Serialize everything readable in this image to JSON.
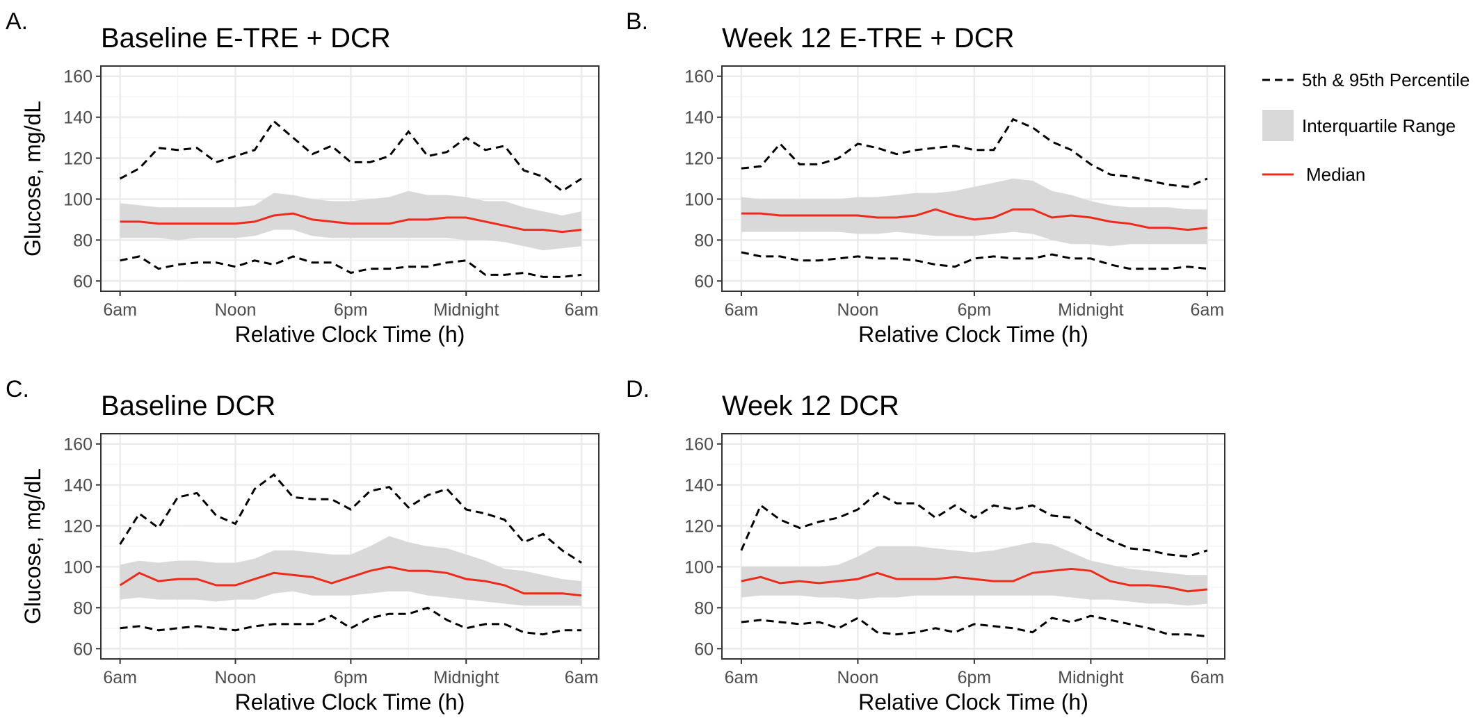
{
  "legend": {
    "percentile_label": "5th & 95th Percentile",
    "iqr_label": "Interquartile Range",
    "median_label": "Median"
  },
  "colors": {
    "median": "#ee2a1b",
    "iqr": "#d9d9d9",
    "percentile": "#000000",
    "grid_major": "#ebebeb",
    "grid_minor": "#f4f4f4",
    "panel_border": "#333333"
  },
  "chart_data": [
    {
      "type": "line",
      "letter": "A.",
      "title": "Baseline E-TRE + DCR",
      "xlabel": "Relative Clock Time (h)",
      "ylabel": "Glucose, mg/dL",
      "xlim": [
        0,
        24
      ],
      "ylim": [
        60,
        160
      ],
      "xticks": [
        0,
        6,
        12,
        18,
        24
      ],
      "xticklabels": [
        "6am",
        "Noon",
        "6pm",
        "Midnight",
        "6am"
      ],
      "yticks": [
        60,
        80,
        100,
        120,
        140,
        160
      ],
      "yticklabels": [
        "60",
        "80",
        "100",
        "120",
        "140",
        "160"
      ],
      "x": [
        0,
        1,
        2,
        3,
        4,
        5,
        6,
        7,
        8,
        9,
        10,
        11,
        12,
        13,
        14,
        15,
        16,
        17,
        18,
        19,
        20,
        21,
        22,
        23,
        24
      ],
      "series": [
        {
          "name": "95th Percentile",
          "values": [
            110,
            115,
            125,
            124,
            125,
            118,
            121,
            124,
            138,
            130,
            122,
            126,
            118,
            118,
            121,
            133,
            121,
            123,
            130,
            124,
            126,
            114,
            111,
            104,
            110
          ]
        },
        {
          "name": "75th Percentile",
          "values": [
            98,
            97,
            96,
            96,
            96,
            96,
            96,
            97,
            103,
            102,
            100,
            99,
            99,
            100,
            101,
            104,
            102,
            102,
            101,
            99,
            99,
            96,
            94,
            92,
            94
          ]
        },
        {
          "name": "Median",
          "values": [
            89,
            89,
            88,
            88,
            88,
            88,
            88,
            89,
            92,
            93,
            90,
            89,
            88,
            88,
            88,
            90,
            90,
            91,
            91,
            89,
            87,
            85,
            85,
            84,
            85
          ]
        },
        {
          "name": "25th Percentile",
          "values": [
            81,
            81,
            81,
            80,
            81,
            81,
            81,
            82,
            85,
            85,
            82,
            81,
            81,
            81,
            81,
            81,
            81,
            81,
            80,
            80,
            79,
            77,
            75,
            76,
            77
          ]
        },
        {
          "name": "5th Percentile",
          "values": [
            70,
            72,
            66,
            68,
            69,
            69,
            67,
            70,
            68,
            72,
            69,
            69,
            64,
            66,
            66,
            67,
            67,
            69,
            70,
            63,
            63,
            64,
            62,
            62,
            63
          ]
        }
      ]
    },
    {
      "type": "line",
      "letter": "B.",
      "title": "Week 12 E-TRE + DCR",
      "xlabel": "Relative Clock Time (h)",
      "ylabel": "",
      "xlim": [
        0,
        24
      ],
      "ylim": [
        60,
        160
      ],
      "xticks": [
        0,
        6,
        12,
        18,
        24
      ],
      "xticklabels": [
        "6am",
        "Noon",
        "6pm",
        "Midnight",
        "6am"
      ],
      "yticks": [
        60,
        80,
        100,
        120,
        140,
        160
      ],
      "yticklabels": [
        "60",
        "80",
        "100",
        "120",
        "140",
        "160"
      ],
      "x": [
        0,
        1,
        2,
        3,
        4,
        5,
        6,
        7,
        8,
        9,
        10,
        11,
        12,
        13,
        14,
        15,
        16,
        17,
        18,
        19,
        20,
        21,
        22,
        23,
        24
      ],
      "series": [
        {
          "name": "95th Percentile",
          "values": [
            115,
            116,
            127,
            117,
            117,
            120,
            127,
            125,
            122,
            124,
            125,
            126,
            124,
            124,
            139,
            135,
            128,
            124,
            117,
            112,
            111,
            109,
            107,
            106,
            110
          ]
        },
        {
          "name": "75th Percentile",
          "values": [
            101,
            100,
            100,
            100,
            100,
            100,
            101,
            101,
            102,
            103,
            103,
            104,
            106,
            108,
            110,
            109,
            104,
            102,
            99,
            97,
            96,
            96,
            96,
            95,
            95
          ]
        },
        {
          "name": "Median",
          "values": [
            93,
            93,
            92,
            92,
            92,
            92,
            92,
            91,
            91,
            92,
            95,
            92,
            90,
            91,
            95,
            95,
            91,
            92,
            91,
            89,
            88,
            86,
            86,
            85,
            86
          ]
        },
        {
          "name": "25th Percentile",
          "values": [
            84,
            84,
            84,
            84,
            84,
            84,
            83,
            83,
            84,
            83,
            82,
            82,
            82,
            83,
            84,
            83,
            80,
            78,
            78,
            77,
            78,
            78,
            78,
            78,
            78
          ]
        },
        {
          "name": "5th Percentile",
          "values": [
            74,
            72,
            72,
            70,
            70,
            71,
            72,
            71,
            71,
            70,
            68,
            67,
            71,
            72,
            71,
            71,
            73,
            71,
            71,
            68,
            66,
            66,
            66,
            67,
            66
          ]
        }
      ]
    },
    {
      "type": "line",
      "letter": "C.",
      "title": "Baseline DCR",
      "xlabel": "Relative Clock Time (h)",
      "ylabel": "Glucose, mg/dL",
      "xlim": [
        0,
        24
      ],
      "ylim": [
        60,
        160
      ],
      "xticks": [
        0,
        6,
        12,
        18,
        24
      ],
      "xticklabels": [
        "6am",
        "Noon",
        "6pm",
        "Midnight",
        "6am"
      ],
      "yticks": [
        60,
        80,
        100,
        120,
        140,
        160
      ],
      "yticklabels": [
        "60",
        "80",
        "100",
        "120",
        "140",
        "160"
      ],
      "x": [
        0,
        1,
        2,
        3,
        4,
        5,
        6,
        7,
        8,
        9,
        10,
        11,
        12,
        13,
        14,
        15,
        16,
        17,
        18,
        19,
        20,
        21,
        22,
        23,
        24
      ],
      "series": [
        {
          "name": "95th Percentile",
          "values": [
            111,
            126,
            119,
            134,
            136,
            125,
            121,
            138,
            145,
            134,
            133,
            133,
            128,
            137,
            139,
            129,
            135,
            138,
            128,
            126,
            123,
            112,
            116,
            108,
            102
          ]
        },
        {
          "name": "75th Percentile",
          "values": [
            101,
            103,
            102,
            103,
            103,
            102,
            102,
            104,
            108,
            108,
            107,
            106,
            106,
            110,
            115,
            112,
            110,
            109,
            106,
            103,
            99,
            98,
            96,
            94,
            93
          ]
        },
        {
          "name": "Median",
          "values": [
            91,
            97,
            93,
            94,
            94,
            91,
            91,
            94,
            97,
            96,
            95,
            92,
            95,
            98,
            100,
            98,
            98,
            97,
            94,
            93,
            91,
            87,
            87,
            87,
            86
          ]
        },
        {
          "name": "25th Percentile",
          "values": [
            84,
            85,
            84,
            84,
            84,
            83,
            84,
            84,
            87,
            88,
            86,
            86,
            86,
            87,
            88,
            88,
            86,
            85,
            84,
            83,
            82,
            81,
            81,
            81,
            81
          ]
        },
        {
          "name": "5th Percentile",
          "values": [
            70,
            71,
            69,
            70,
            71,
            70,
            69,
            71,
            72,
            72,
            72,
            76,
            70,
            75,
            77,
            77,
            80,
            74,
            70,
            72,
            72,
            68,
            67,
            69,
            69
          ]
        }
      ]
    },
    {
      "type": "line",
      "letter": "D.",
      "title": "Week 12 DCR",
      "xlabel": "Relative Clock Time (h)",
      "ylabel": "",
      "xlim": [
        0,
        24
      ],
      "ylim": [
        60,
        160
      ],
      "xticks": [
        0,
        6,
        12,
        18,
        24
      ],
      "xticklabels": [
        "6am",
        "Noon",
        "6pm",
        "Midnight",
        "6am"
      ],
      "yticks": [
        60,
        80,
        100,
        120,
        140,
        160
      ],
      "yticklabels": [
        "60",
        "80",
        "100",
        "120",
        "140",
        "160"
      ],
      "x": [
        0,
        1,
        2,
        3,
        4,
        5,
        6,
        7,
        8,
        9,
        10,
        11,
        12,
        13,
        14,
        15,
        16,
        17,
        18,
        19,
        20,
        21,
        22,
        23,
        24
      ],
      "series": [
        {
          "name": "95th Percentile",
          "values": [
            108,
            130,
            123,
            119,
            122,
            124,
            128,
            136,
            131,
            131,
            124,
            130,
            124,
            130,
            128,
            130,
            125,
            124,
            118,
            113,
            109,
            108,
            106,
            105,
            108
          ]
        },
        {
          "name": "75th Percentile",
          "values": [
            100,
            100,
            100,
            100,
            100,
            101,
            105,
            110,
            110,
            110,
            109,
            108,
            107,
            108,
            110,
            112,
            111,
            107,
            103,
            101,
            99,
            98,
            97,
            96,
            96
          ]
        },
        {
          "name": "Median",
          "values": [
            93,
            95,
            92,
            93,
            92,
            93,
            94,
            97,
            94,
            94,
            94,
            95,
            94,
            93,
            93,
            97,
            98,
            99,
            98,
            93,
            91,
            91,
            90,
            88,
            89
          ]
        },
        {
          "name": "25th Percentile",
          "values": [
            85,
            86,
            86,
            86,
            85,
            85,
            84,
            85,
            85,
            86,
            86,
            86,
            86,
            86,
            86,
            86,
            86,
            85,
            84,
            84,
            83,
            82,
            82,
            81,
            82
          ]
        },
        {
          "name": "5th Percentile",
          "values": [
            73,
            74,
            73,
            72,
            73,
            70,
            75,
            68,
            67,
            68,
            70,
            68,
            72,
            71,
            70,
            68,
            75,
            73,
            76,
            74,
            72,
            70,
            67,
            67,
            66
          ]
        }
      ]
    }
  ]
}
